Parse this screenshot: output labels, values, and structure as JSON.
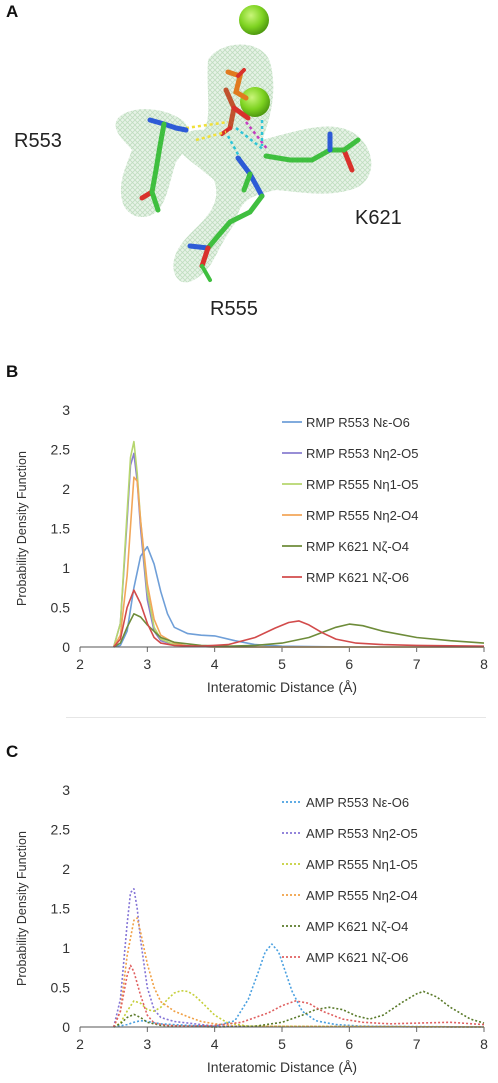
{
  "panel_a": {
    "letter": "A",
    "labels": {
      "r553": "R553",
      "k621": "K621",
      "r555": "R555"
    },
    "colors": {
      "carbon": "#3fbf3f",
      "nitrogen": "#2d5bd6",
      "oxygen": "#d9312b",
      "phosphorus": "#e07a1f",
      "ion": "#7ed321",
      "mesh": "#c5e3c5"
    }
  },
  "chart_data": [
    {
      "letter": "B",
      "type": "line",
      "xlabel": "Interatomic Distance (Å)",
      "ylabel": "Probability Density Function",
      "xlim": [
        2,
        8
      ],
      "ylim": [
        0,
        3
      ],
      "xticks": [
        "2",
        "3",
        "4",
        "5",
        "6",
        "7",
        "8"
      ],
      "yticks": [
        "0",
        "0.5",
        "1",
        "1.5",
        "2",
        "2.5",
        "3"
      ],
      "line_style": "solid",
      "legend_position": "top-right",
      "series": [
        {
          "name": "RMP R553 Nε-O6",
          "color": "#6f9fd8",
          "x": [
            2.5,
            2.6,
            2.7,
            2.8,
            2.9,
            3.0,
            3.1,
            3.2,
            3.3,
            3.4,
            3.6,
            3.8,
            4.0,
            4.3,
            4.6,
            5.0,
            6.0,
            8.0
          ],
          "y": [
            0,
            0.02,
            0.2,
            0.75,
            1.15,
            1.27,
            1.05,
            0.7,
            0.42,
            0.25,
            0.17,
            0.15,
            0.14,
            0.08,
            0.03,
            0.01,
            0,
            0
          ]
        },
        {
          "name": "RMP R553 Nη2-O5",
          "color": "#8a7ed0",
          "x": [
            2.5,
            2.6,
            2.7,
            2.75,
            2.8,
            2.85,
            2.9,
            3.0,
            3.1,
            3.2,
            3.4,
            3.6,
            4.0,
            8.0
          ],
          "y": [
            0,
            0.3,
            1.6,
            2.3,
            2.45,
            2.1,
            1.5,
            0.6,
            0.2,
            0.08,
            0.03,
            0.01,
            0,
            0
          ]
        },
        {
          "name": "RMP R555 Nη1-O5",
          "color": "#b6d66e",
          "x": [
            2.5,
            2.6,
            2.7,
            2.75,
            2.8,
            2.85,
            2.9,
            3.0,
            3.1,
            3.2,
            3.4,
            3.6,
            4.0,
            8.0
          ],
          "y": [
            0,
            0.3,
            1.7,
            2.4,
            2.6,
            2.2,
            1.6,
            0.7,
            0.25,
            0.1,
            0.03,
            0.01,
            0,
            0
          ]
        },
        {
          "name": "RMP R555 Nη2-O4",
          "color": "#f2a65a",
          "x": [
            2.5,
            2.6,
            2.7,
            2.8,
            2.85,
            2.9,
            3.0,
            3.1,
            3.2,
            3.4,
            3.6,
            4.0,
            8.0
          ],
          "y": [
            0,
            0.15,
            0.9,
            2.15,
            2.1,
            1.6,
            0.8,
            0.35,
            0.15,
            0.05,
            0.01,
            0,
            0
          ]
        },
        {
          "name": "RMP K621 Nζ-O4",
          "color": "#6e8c3a",
          "x": [
            2.5,
            2.6,
            2.7,
            2.8,
            2.9,
            3.0,
            3.2,
            3.4,
            3.8,
            4.2,
            4.6,
            5.0,
            5.4,
            5.8,
            6.0,
            6.2,
            6.5,
            7.0,
            7.5,
            8.0
          ],
          "y": [
            0,
            0.05,
            0.25,
            0.42,
            0.38,
            0.28,
            0.12,
            0.06,
            0.02,
            0.01,
            0.02,
            0.05,
            0.12,
            0.25,
            0.29,
            0.27,
            0.2,
            0.12,
            0.08,
            0.05
          ]
        },
        {
          "name": "RMP K621 Nζ-O6",
          "color": "#d24b4b",
          "x": [
            2.5,
            2.6,
            2.7,
            2.8,
            2.9,
            3.0,
            3.1,
            3.2,
            3.4,
            3.8,
            4.2,
            4.6,
            4.9,
            5.1,
            5.25,
            5.4,
            5.6,
            5.8,
            6.1,
            6.5,
            7.0,
            8.0
          ],
          "y": [
            0,
            0.1,
            0.5,
            0.72,
            0.55,
            0.3,
            0.12,
            0.05,
            0.02,
            0.01,
            0.03,
            0.12,
            0.24,
            0.31,
            0.33,
            0.28,
            0.18,
            0.1,
            0.05,
            0.03,
            0.02,
            0.01
          ]
        }
      ]
    },
    {
      "letter": "C",
      "type": "line",
      "xlabel": "Interatomic Distance (Å)",
      "ylabel": "Probability Density Function",
      "xlim": [
        2,
        8
      ],
      "ylim": [
        0,
        3
      ],
      "xticks": [
        "2",
        "3",
        "4",
        "5",
        "6",
        "7",
        "8"
      ],
      "yticks": [
        "0",
        "0.5",
        "1",
        "1.5",
        "2",
        "2.5",
        "3"
      ],
      "line_style": "dotted",
      "legend_position": "top-right",
      "series": [
        {
          "name": "AMP R553 Nε-O6",
          "color": "#4aa0e0",
          "x": [
            2.5,
            2.7,
            2.8,
            2.9,
            3.0,
            3.2,
            3.6,
            4.0,
            4.3,
            4.5,
            4.65,
            4.75,
            4.85,
            4.95,
            5.05,
            5.15,
            5.3,
            5.5,
            5.8,
            6.2,
            8.0
          ],
          "y": [
            0,
            0.03,
            0.06,
            0.08,
            0.07,
            0.04,
            0.02,
            0.01,
            0.08,
            0.35,
            0.7,
            0.95,
            1.05,
            0.95,
            0.7,
            0.45,
            0.2,
            0.08,
            0.03,
            0.01,
            0
          ]
        },
        {
          "name": "AMP R553 Nη2-O5",
          "color": "#8474d6",
          "x": [
            2.5,
            2.6,
            2.7,
            2.75,
            2.8,
            2.85,
            2.9,
            3.0,
            3.1,
            3.2,
            3.4,
            3.7,
            4.0,
            8.0
          ],
          "y": [
            0,
            0.35,
            1.3,
            1.7,
            1.75,
            1.5,
            1.1,
            0.5,
            0.22,
            0.12,
            0.07,
            0.04,
            0.01,
            0
          ]
        },
        {
          "name": "AMP R555 Nη1-O5",
          "color": "#c5cf3a",
          "x": [
            2.5,
            2.6,
            2.7,
            2.8,
            2.9,
            3.0,
            3.1,
            3.2,
            3.3,
            3.4,
            3.5,
            3.6,
            3.7,
            3.8,
            4.0,
            4.2,
            4.5,
            8.0
          ],
          "y": [
            0,
            0.05,
            0.2,
            0.33,
            0.3,
            0.22,
            0.2,
            0.25,
            0.35,
            0.43,
            0.46,
            0.45,
            0.4,
            0.32,
            0.15,
            0.05,
            0.01,
            0
          ]
        },
        {
          "name": "AMP R555 Nη2-O4",
          "color": "#f0a045",
          "x": [
            2.5,
            2.6,
            2.7,
            2.8,
            2.85,
            2.9,
            3.0,
            3.1,
            3.2,
            3.4,
            3.6,
            3.8,
            4.0,
            4.3,
            8.0
          ],
          "y": [
            0,
            0.2,
            0.9,
            1.35,
            1.38,
            1.2,
            0.8,
            0.5,
            0.32,
            0.2,
            0.13,
            0.07,
            0.04,
            0.01,
            0
          ]
        },
        {
          "name": "AMP K621 Nζ-O4",
          "color": "#5a7a2a",
          "x": [
            2.5,
            2.6,
            2.7,
            2.8,
            2.9,
            3.0,
            3.2,
            3.6,
            4.0,
            4.6,
            5.0,
            5.3,
            5.5,
            5.7,
            5.9,
            6.1,
            6.3,
            6.5,
            6.8,
            7.0,
            7.1,
            7.3,
            7.5,
            7.8,
            8.0
          ],
          "y": [
            0,
            0.04,
            0.12,
            0.16,
            0.12,
            0.06,
            0.02,
            0.01,
            0,
            0.01,
            0.06,
            0.15,
            0.22,
            0.25,
            0.22,
            0.14,
            0.1,
            0.15,
            0.32,
            0.42,
            0.45,
            0.38,
            0.25,
            0.1,
            0.05
          ]
        },
        {
          "name": "AMP K621 Nζ-O6",
          "color": "#e06060",
          "x": [
            2.5,
            2.6,
            2.7,
            2.75,
            2.8,
            2.9,
            3.0,
            3.1,
            3.3,
            3.6,
            4.0,
            4.4,
            4.8,
            5.0,
            5.2,
            5.4,
            5.6,
            5.9,
            6.2,
            6.6,
            7.0,
            7.5,
            8.0
          ],
          "y": [
            0,
            0.2,
            0.65,
            0.78,
            0.7,
            0.4,
            0.15,
            0.05,
            0.02,
            0.01,
            0.02,
            0.06,
            0.18,
            0.27,
            0.33,
            0.3,
            0.2,
            0.1,
            0.06,
            0.04,
            0.05,
            0.06,
            0.03
          ]
        }
      ]
    }
  ]
}
